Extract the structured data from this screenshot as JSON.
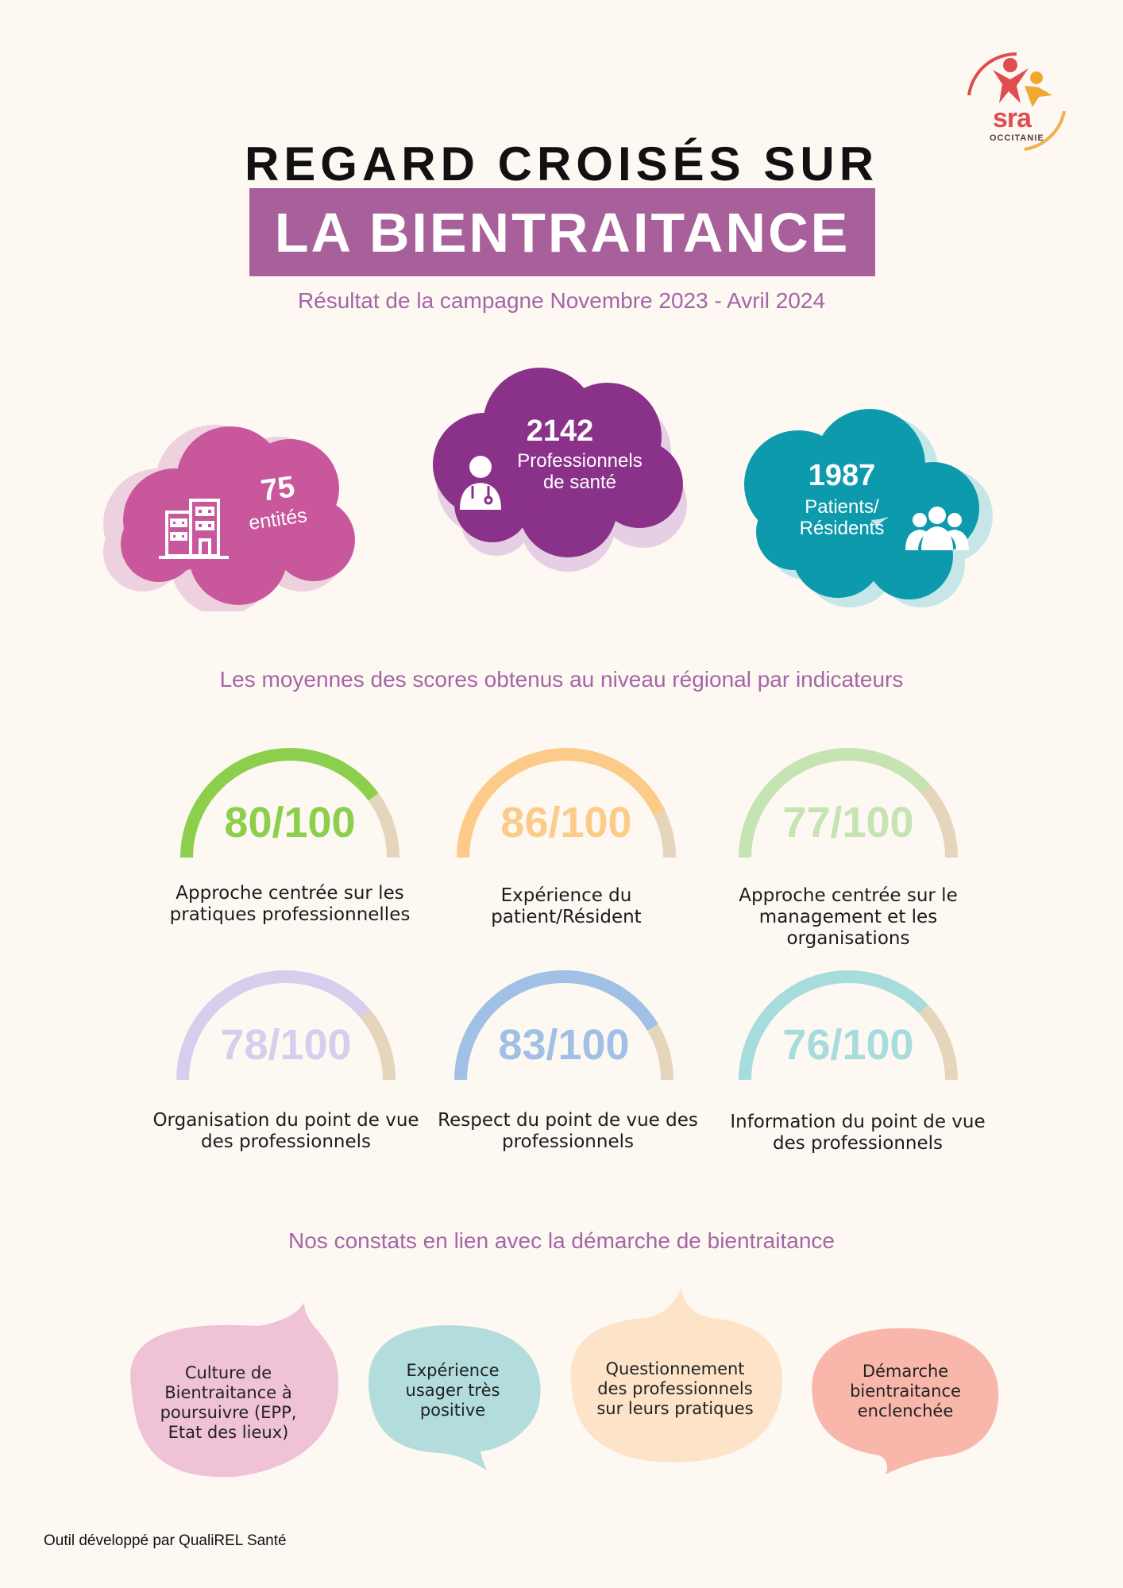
{
  "logo": {
    "text": "sra",
    "subtext": "OCCITANIE"
  },
  "header": {
    "title_line1": "REGARD CROISÉS SUR",
    "title_line2": "LA BIENTRAITANCE",
    "subtitle": "Résultat de la campagne Novembre 2023 - Avril 2024"
  },
  "stats": [
    {
      "value": "75",
      "label": "entités",
      "icon": "building-icon",
      "color": "#c9579c"
    },
    {
      "value": "2142",
      "label_line1": "Professionnels",
      "label_line2": "de santé",
      "icon": "doctor-icon",
      "color": "#8a3189"
    },
    {
      "value": "1987",
      "label_line1": "Patients/",
      "label_line2": "Résidents",
      "icon": "group-icon",
      "color": "#0e9aad"
    }
  ],
  "scores_title": "Les moyennes des scores obtenus au niveau régional par indicateurs",
  "scores": [
    {
      "value_text": "80/100",
      "score": 80,
      "label_line1": "Approche centrée sur les",
      "label_line2": "pratiques professionnelles",
      "label_line3": "",
      "color": "#8ccf4d"
    },
    {
      "value_text": "86/100",
      "score": 86,
      "label_line1": "Expérience du",
      "label_line2": "patient/Résident",
      "label_line3": "",
      "color": "#fccb8a"
    },
    {
      "value_text": "77/100",
      "score": 77,
      "label_line1": "Approche centrée sur le",
      "label_line2": "management et les",
      "label_line3": "organisations",
      "color": "#c6e3b3"
    },
    {
      "value_text": "78/100",
      "score": 78,
      "label_line1": "Organisation du point de vue",
      "label_line2": "des professionnels",
      "label_line3": "",
      "color": "#d9cdee"
    },
    {
      "value_text": "83/100",
      "score": 83,
      "label_line1": "Respect du point de vue des",
      "label_line2": "professionnels",
      "label_line3": "",
      "color": "#a1c0e6"
    },
    {
      "value_text": "76/100",
      "score": 76,
      "label_line1": "Information du point de vue",
      "label_line2": "des professionnels",
      "label_line3": "",
      "color": "#a7dcdd"
    }
  ],
  "findings_title": "Nos constats en lien avec la démarche de bientraitance",
  "findings": [
    {
      "lines": [
        "Culture de",
        "Bientraitance à",
        "poursuivre (EPP,",
        "Etat des lieux)"
      ],
      "color": "#efc2d6"
    },
    {
      "lines": [
        "Expérience",
        "usager très",
        "positive"
      ],
      "color": "#b3dcdc"
    },
    {
      "lines": [
        "Questionnement",
        "des professionnels",
        "sur leurs pratiques"
      ],
      "color": "#fde3c7"
    },
    {
      "lines": [
        "Démarche",
        "bientraitance",
        "enclenchée"
      ],
      "color": "#f9b7ab"
    }
  ],
  "footer": "Outil développé par QualiREL Santé"
}
